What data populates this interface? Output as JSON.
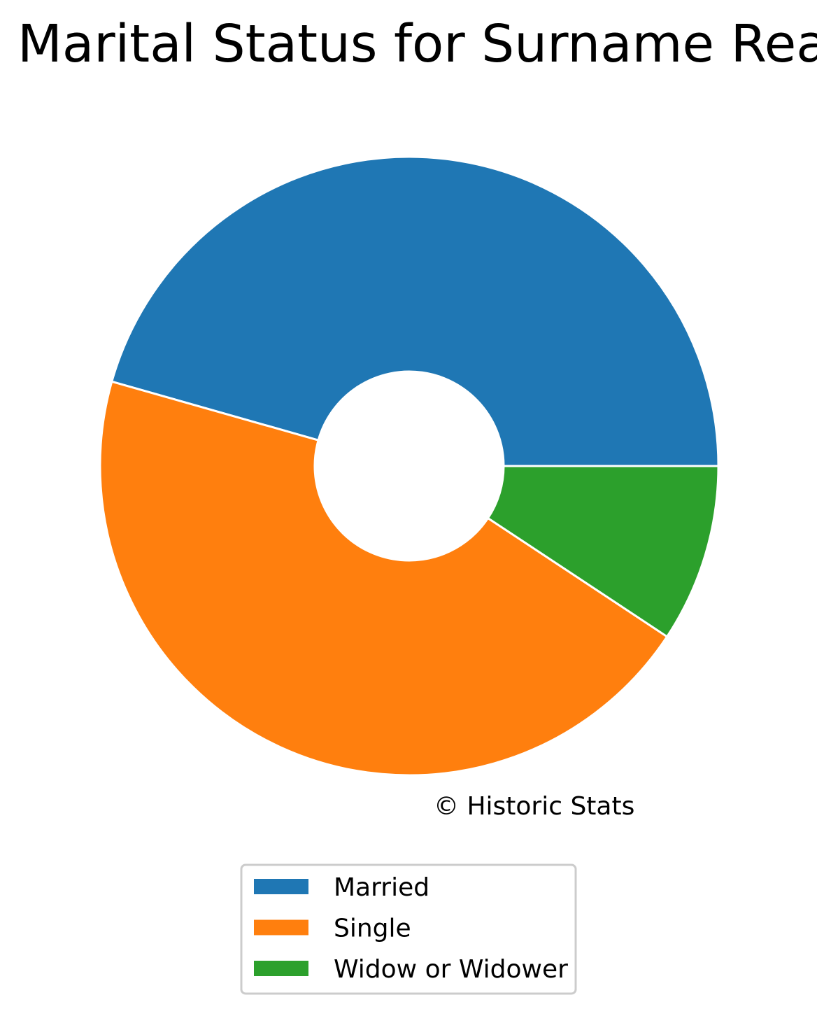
{
  "chart_data": {
    "type": "donut",
    "title": "Marital Status for Surname Rea",
    "categories": [
      "Married",
      "Single",
      "Widow or Widower"
    ],
    "values": [
      45.6,
      45.1,
      9.3
    ],
    "colors": [
      "#1f77b4",
      "#ff7f0e",
      "#2ca02c"
    ],
    "source": "© Historic Stats",
    "legend": "bottom"
  }
}
